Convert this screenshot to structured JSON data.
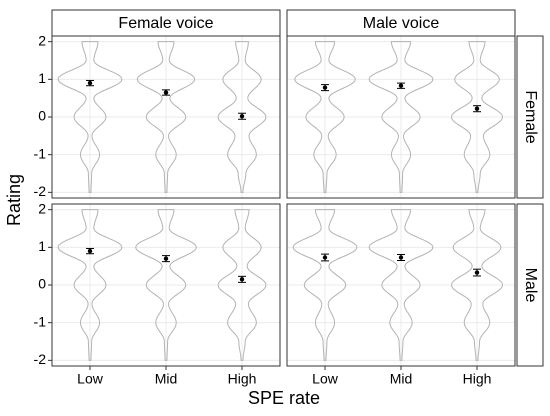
{
  "chart_data": {
    "type": "violin",
    "x_label": "SPE rate",
    "y_label": "Rating",
    "columns": [
      "Female voice",
      "Male voice"
    ],
    "rows": [
      "Female",
      "Male"
    ],
    "categories": [
      "Low",
      "Mid",
      "High"
    ],
    "ylim": [
      -2.15,
      2.15
    ],
    "yticks": [
      -2,
      -1,
      0,
      1,
      2
    ],
    "grid": true,
    "violin_color": "#b3b3b3",
    "point_color": "#000000",
    "density_y": [
      -2,
      -1.5,
      -1,
      -0.5,
      0,
      0.5,
      1,
      1.5,
      2
    ],
    "facets": [
      {
        "means": [
          0.9,
          0.65,
          0.02
        ],
        "errors": [
          0.07,
          0.07,
          0.08
        ],
        "density": [
          [
            0.03,
            0.05,
            0.3,
            0.06,
            0.5,
            0.12,
            1,
            0.12,
            0.25
          ],
          [
            0.03,
            0.05,
            0.32,
            0.08,
            0.62,
            0.12,
            0.9,
            0.1,
            0.25
          ],
          [
            0.03,
            0.12,
            0.45,
            0.22,
            0.75,
            0.18,
            0.6,
            0.1,
            0.2
          ]
        ]
      },
      {
        "means": [
          0.78,
          0.83,
          0.22
        ],
        "errors": [
          0.08,
          0.07,
          0.08
        ],
        "density": [
          [
            0.03,
            0.06,
            0.35,
            0.1,
            0.6,
            0.12,
            0.95,
            0.12,
            0.3
          ],
          [
            0.03,
            0.05,
            0.3,
            0.08,
            0.6,
            0.12,
            1,
            0.12,
            0.3
          ],
          [
            0.03,
            0.1,
            0.4,
            0.2,
            0.8,
            0.15,
            0.7,
            0.1,
            0.25
          ]
        ]
      },
      {
        "means": [
          0.9,
          0.7,
          0.15
        ],
        "errors": [
          0.07,
          0.08,
          0.08
        ],
        "density": [
          [
            0.03,
            0.05,
            0.3,
            0.06,
            0.5,
            0.12,
            1,
            0.12,
            0.25
          ],
          [
            0.03,
            0.05,
            0.32,
            0.08,
            0.62,
            0.12,
            0.95,
            0.1,
            0.25
          ],
          [
            0.03,
            0.1,
            0.45,
            0.2,
            0.75,
            0.16,
            0.6,
            0.1,
            0.22
          ]
        ]
      },
      {
        "means": [
          0.73,
          0.73,
          0.33
        ],
        "errors": [
          0.09,
          0.08,
          0.09
        ],
        "density": [
          [
            0.03,
            0.06,
            0.3,
            0.1,
            0.65,
            0.12,
            1,
            0.12,
            0.3
          ],
          [
            0.03,
            0.06,
            0.35,
            0.1,
            0.6,
            0.12,
            1,
            0.12,
            0.3
          ],
          [
            0.03,
            0.08,
            0.4,
            0.18,
            0.8,
            0.15,
            0.75,
            0.1,
            0.25
          ]
        ]
      }
    ]
  }
}
